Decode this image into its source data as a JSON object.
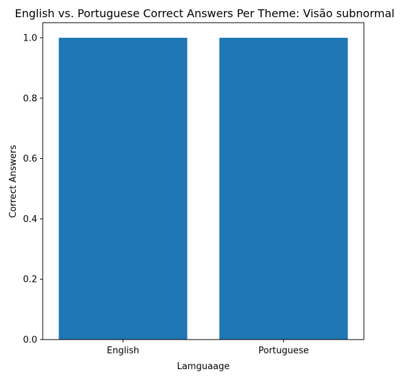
{
  "chart_data": {
    "type": "bar",
    "title": "English vs. Portuguese Correct Answers Per Theme: Visão subnormal",
    "xlabel": "Lamguaage",
    "ylabel": "Correct Answers",
    "categories": [
      "English",
      "Portuguese"
    ],
    "values": [
      1,
      1
    ],
    "ylim": [
      0,
      1.05
    ],
    "yticks": [
      "0.0",
      "0.2",
      "0.4",
      "0.6",
      "0.8",
      "1.0"
    ],
    "grid": false,
    "bar_color": "#1f77b4"
  }
}
